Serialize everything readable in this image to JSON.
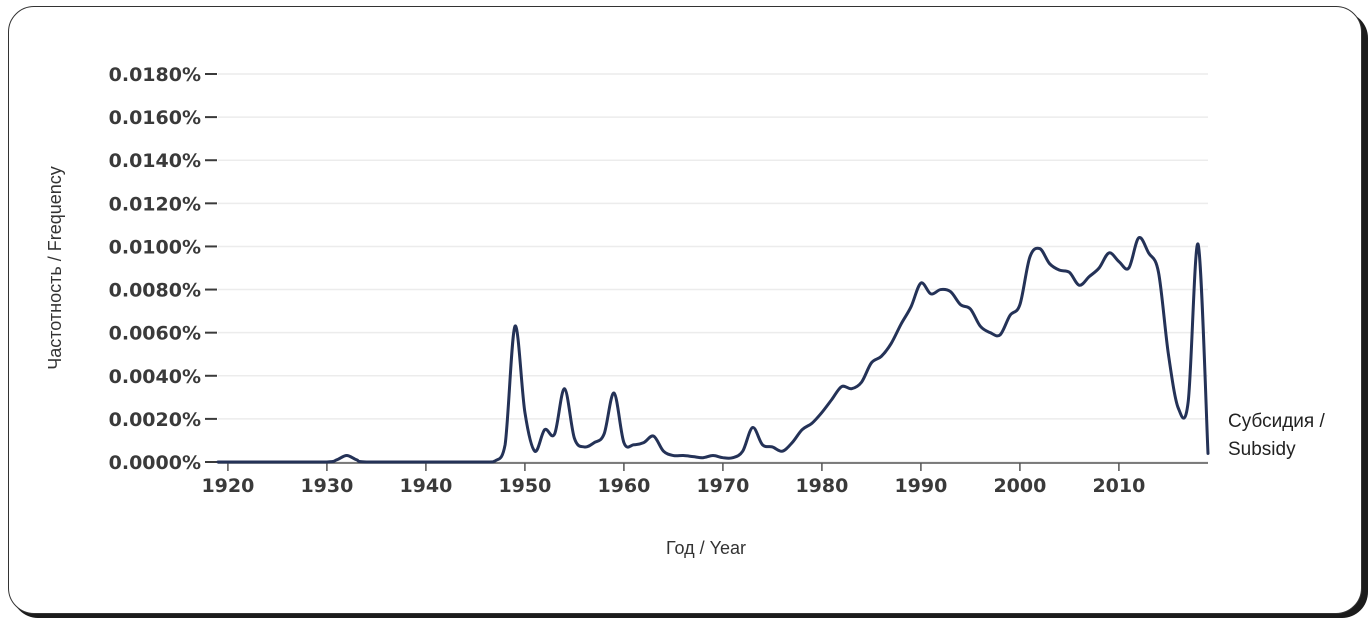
{
  "chart_data": {
    "type": "line",
    "xlabel": "Год / Year",
    "ylabel": "Частотность / Frequency",
    "series_label_lines": [
      "Субсидия /",
      "Subsidy"
    ],
    "xlim": [
      1919,
      2019
    ],
    "ylim": [
      0,
      0.018
    ],
    "x_ticks": [
      1920,
      1930,
      1940,
      1950,
      1960,
      1970,
      1980,
      1990,
      2000,
      2010
    ],
    "y_ticks": [
      "0.0000%",
      "0.0020%",
      "0.0040%",
      "0.0060%",
      "0.0080%",
      "0.0100%",
      "0.0120%",
      "0.0140%",
      "0.0160%",
      "0.0180%"
    ],
    "grid": true,
    "line_color": "#243257",
    "series": [
      {
        "x": [
          1919,
          1920,
          1925,
          1930,
          1931,
          1932,
          1933,
          1934,
          1940,
          1946,
          1947,
          1948,
          1949,
          1950,
          1951,
          1952,
          1953,
          1954,
          1955,
          1956,
          1957,
          1958,
          1959,
          1960,
          1961,
          1962,
          1963,
          1964,
          1965,
          1966,
          1967,
          1968,
          1969,
          1970,
          1971,
          1972,
          1973,
          1974,
          1975,
          1976,
          1977,
          1978,
          1979,
          1980,
          1981,
          1982,
          1983,
          1984,
          1985,
          1986,
          1987,
          1988,
          1989,
          1990,
          1991,
          1992,
          1993,
          1994,
          1995,
          1996,
          1997,
          1998,
          1999,
          2000,
          2001,
          2002,
          2003,
          2004,
          2005,
          2006,
          2007,
          2008,
          2009,
          2010,
          2011,
          2012,
          2013,
          2014,
          2015,
          2016,
          2017,
          2018,
          2019
        ],
        "values": [
          0,
          0,
          0,
          0,
          0.0001,
          0.0003,
          0.0001,
          0,
          0,
          0,
          5e-05,
          0.0008,
          0.0063,
          0.0023,
          0.0005,
          0.0015,
          0.0013,
          0.0034,
          0.0011,
          0.0007,
          0.0009,
          0.0013,
          0.0032,
          0.0009,
          0.0008,
          0.0009,
          0.0012,
          0.0005,
          0.0003,
          0.0003,
          0.00025,
          0.0002,
          0.0003,
          0.0002,
          0.0002,
          0.0005,
          0.0016,
          0.0008,
          0.0007,
          0.0005,
          0.0009,
          0.0015,
          0.0018,
          0.0023,
          0.0029,
          0.0035,
          0.0034,
          0.0037,
          0.0046,
          0.0049,
          0.0055,
          0.0064,
          0.0072,
          0.0083,
          0.0078,
          0.008,
          0.0079,
          0.0073,
          0.0071,
          0.0063,
          0.006,
          0.0059,
          0.0068,
          0.0073,
          0.0095,
          0.0099,
          0.0092,
          0.0089,
          0.0088,
          0.0082,
          0.0086,
          0.009,
          0.0097,
          0.0093,
          0.009,
          0.0104,
          0.0097,
          0.0088,
          0.005,
          0.0025,
          0.0028,
          0.0101,
          0.0004
        ]
      }
    ]
  }
}
